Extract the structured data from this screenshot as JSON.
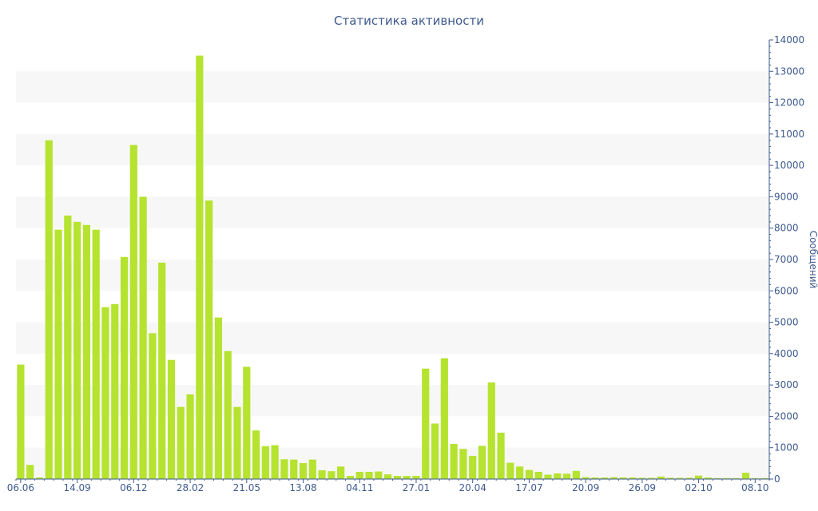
{
  "chart_data": {
    "type": "bar",
    "title": "Статистика активности",
    "xlabel": "",
    "ylabel": "Сообщений",
    "ylim": [
      0,
      14000
    ],
    "y_ticks": [
      0,
      1000,
      2000,
      3000,
      4000,
      5000,
      6000,
      7000,
      8000,
      9000,
      10000,
      11000,
      12000,
      13000,
      14000
    ],
    "y_axis_side": "right",
    "grid": "alternating horizontal bands",
    "bar_color": "#b5e32f",
    "band_color": "#f7f7f7",
    "text_color": "#3e5a8e",
    "x_tick_labels": [
      {
        "index": 0,
        "label": "06.06"
      },
      {
        "index": 6,
        "label": "14.09"
      },
      {
        "index": 12,
        "label": "06.12"
      },
      {
        "index": 18,
        "label": "28.02"
      },
      {
        "index": 24,
        "label": "21.05"
      },
      {
        "index": 30,
        "label": "13.08"
      },
      {
        "index": 36,
        "label": "04.11"
      },
      {
        "index": 42,
        "label": "27.01"
      },
      {
        "index": 48,
        "label": "20.04"
      },
      {
        "index": 54,
        "label": "17.07"
      },
      {
        "index": 60,
        "label": "20.09"
      },
      {
        "index": 66,
        "label": "26.09"
      },
      {
        "index": 72,
        "label": "02.10"
      },
      {
        "index": 78,
        "label": "08.10"
      }
    ],
    "values": [
      3650,
      450,
      50,
      10800,
      7950,
      8400,
      8200,
      8100,
      7950,
      5480,
      5580,
      7080,
      10650,
      9000,
      4650,
      6900,
      3800,
      2300,
      2700,
      13500,
      8880,
      5150,
      4080,
      2300,
      3580,
      1550,
      1050,
      1080,
      630,
      620,
      510,
      620,
      280,
      250,
      400,
      100,
      230,
      230,
      240,
      150,
      100,
      100,
      100,
      3520,
      1770,
      3850,
      1120,
      960,
      740,
      1060,
      3080,
      1480,
      520,
      400,
      290,
      230,
      140,
      180,
      170,
      260,
      60,
      50,
      50,
      60,
      50,
      50,
      40,
      40,
      80,
      40,
      40,
      40,
      110,
      50,
      30,
      30,
      30,
      200,
      30,
      30
    ]
  }
}
